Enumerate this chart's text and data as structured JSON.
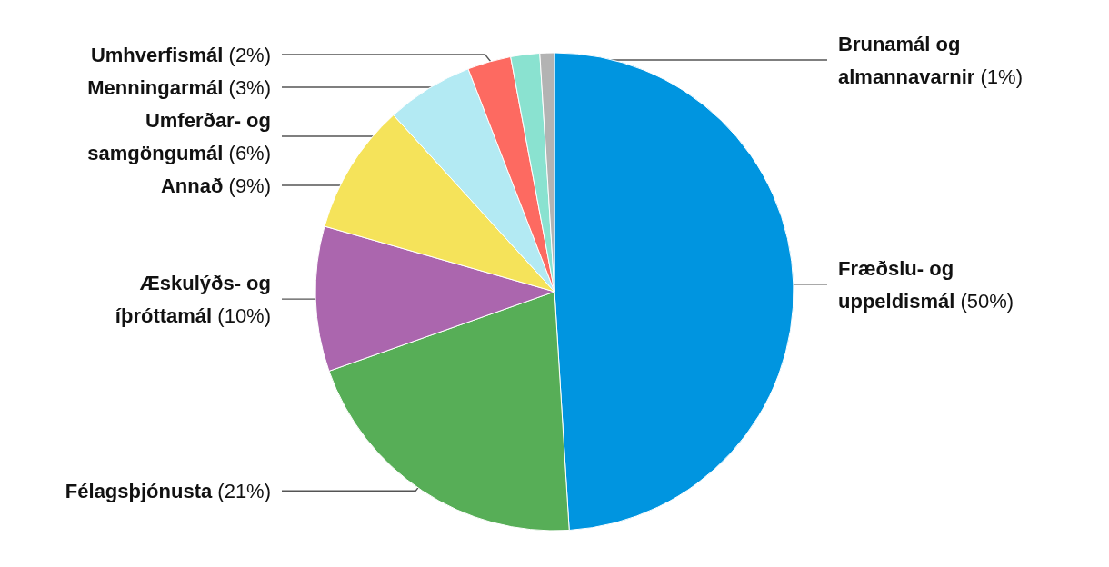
{
  "chart_data": {
    "type": "pie",
    "categories": [
      "Fræðslu- og uppeldismál",
      "Félagsþjónusta",
      "Æskulýðs- og íþróttamál",
      "Annað",
      "Umferðar- og samgöngumál",
      "Menningarmál",
      "Umhverfismál",
      "Brunamál og almannavarnir"
    ],
    "values": [
      50,
      21,
      10,
      9,
      6,
      3,
      2,
      1
    ],
    "colors": [
      "#0095e0",
      "#57ae57",
      "#ab66ae",
      "#f5e35a",
      "#b3eaf3",
      "#fd6a61",
      "#8ae2d0",
      "#b3b3b3"
    ],
    "data_labels": true,
    "value_labels": [
      "(50%)",
      "(21%)",
      "(10%)",
      "(9%)",
      "(6%)",
      "(3%)",
      "(2%)",
      "(1%)"
    ]
  }
}
